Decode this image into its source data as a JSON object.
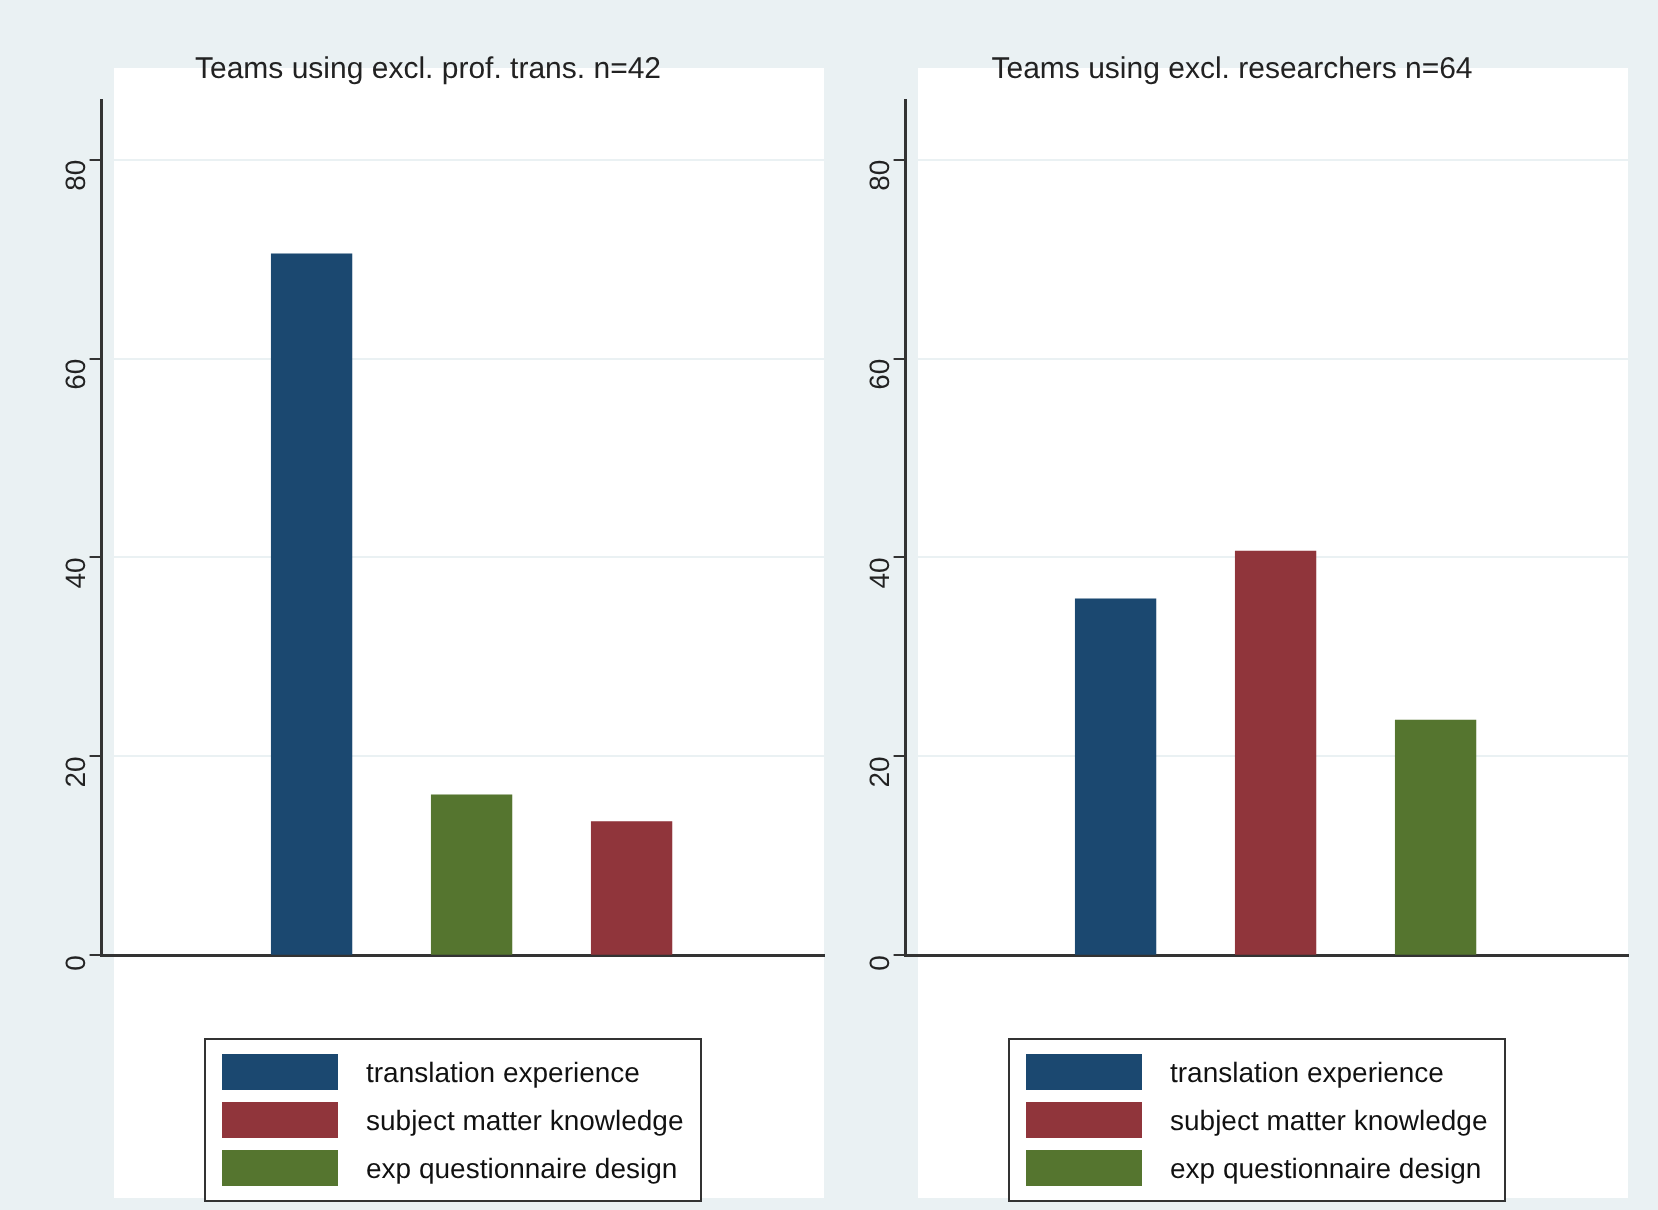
{
  "chart_data": [
    {
      "type": "bar",
      "title": "Teams using excl. prof. trans. n=42",
      "categories": [
        null,
        null,
        null
      ],
      "series": [
        {
          "name": "translation experience",
          "color": "#1b4870",
          "values": [
            70.5,
            null,
            null
          ]
        },
        {
          "name": "subject matter knowledge",
          "color": "#90353b",
          "values": [
            null,
            null,
            13.4
          ]
        },
        {
          "name": "exp questionnaire design",
          "color": "#55752f",
          "values": [
            null,
            16.1,
            null
          ]
        }
      ],
      "ylim": [
        0,
        86
      ],
      "yticks": [
        0,
        20,
        40,
        60,
        80
      ],
      "grid": "y",
      "legend": "bottom"
    },
    {
      "type": "bar",
      "title": "Teams using excl. researchers n=64",
      "categories": [
        null,
        null,
        null
      ],
      "series": [
        {
          "name": "translation experience",
          "color": "#1b4870",
          "values": [
            35.8,
            null,
            null
          ]
        },
        {
          "name": "subject matter knowledge",
          "color": "#90353b",
          "values": [
            null,
            40.6,
            null
          ]
        },
        {
          "name": "exp questionnaire design",
          "color": "#55752f",
          "values": [
            null,
            null,
            23.6
          ]
        }
      ],
      "ylim": [
        0,
        86
      ],
      "yticks": [
        0,
        20,
        40,
        60,
        80
      ],
      "grid": "y",
      "legend": "bottom"
    }
  ]
}
